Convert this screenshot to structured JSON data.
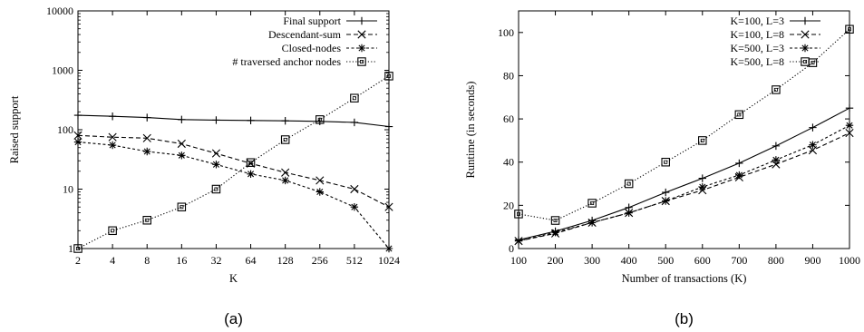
{
  "chart_data": [
    {
      "type": "line",
      "caption": "(a)",
      "xlabel": "K",
      "ylabel": "Raised support",
      "x_scale": "log2",
      "y_scale": "log10",
      "x": [
        2,
        4,
        8,
        16,
        32,
        64,
        128,
        256,
        512,
        1024
      ],
      "x_tick_labels": [
        "2",
        "4",
        "8",
        "16",
        "32",
        "64",
        "128",
        "256",
        "512",
        "1024"
      ],
      "y_ticks": [
        1,
        10,
        100,
        1000,
        10000
      ],
      "y_tick_labels": [
        "1",
        "10",
        "100",
        "1000",
        "10000"
      ],
      "ylim": [
        1,
        10000
      ],
      "grid": false,
      "legend_position": "top-right",
      "series": [
        {
          "name": "Final support",
          "marker": "plus",
          "dash": "solid",
          "values": [
            175,
            168,
            160,
            148,
            145,
            143,
            141,
            138,
            133,
            113
          ]
        },
        {
          "name": "Descendant-sum",
          "marker": "x",
          "dash": "dashed",
          "values": [
            80,
            75,
            72,
            58,
            40,
            27,
            19,
            14,
            10,
            5
          ]
        },
        {
          "name": "Closed-nodes",
          "marker": "asterisk",
          "dash": "short-dashed",
          "values": [
            62,
            55,
            43,
            37,
            26,
            18,
            14,
            9,
            5,
            1
          ]
        },
        {
          "name": "# traversed anchor nodes",
          "marker": "square",
          "dash": "dotted",
          "values": [
            1,
            2,
            3,
            5,
            10,
            28,
            68,
            148,
            340,
            800
          ]
        }
      ]
    },
    {
      "type": "line",
      "caption": "(b)",
      "xlabel": "Number of transactions (K)",
      "ylabel": "Runtime (in seconds)",
      "x": [
        100,
        200,
        300,
        400,
        500,
        600,
        700,
        800,
        900,
        1000
      ],
      "x_tick_labels": [
        "100",
        "200",
        "300",
        "400",
        "500",
        "600",
        "700",
        "800",
        "900",
        "1000"
      ],
      "y_ticks": [
        0,
        20,
        40,
        60,
        80,
        100
      ],
      "y_tick_labels": [
        "0",
        "20",
        "40",
        "60",
        "80",
        "100"
      ],
      "xlim": [
        100,
        1000
      ],
      "ylim": [
        0,
        110
      ],
      "grid": false,
      "legend_position": "top-right",
      "series": [
        {
          "name": "K=100, L=3",
          "marker": "plus",
          "dash": "solid",
          "values": [
            4,
            8,
            13,
            19,
            26,
            32.5,
            39.5,
            47.5,
            56,
            65
          ]
        },
        {
          "name": "K=100, L=8",
          "marker": "x",
          "dash": "dashed",
          "values": [
            3.5,
            7,
            12,
            16.5,
            22,
            27,
            33,
            39,
            45.5,
            53.5
          ]
        },
        {
          "name": "K=500, L=3",
          "marker": "asterisk",
          "dash": "short-dashed",
          "values": [
            3.5,
            7.5,
            12,
            16.5,
            22,
            28.5,
            34,
            41,
            48,
            57
          ]
        },
        {
          "name": "K=500, L=8",
          "marker": "square",
          "dash": "dotted",
          "values": [
            16,
            13,
            21,
            30,
            40,
            50,
            62,
            73.5,
            86,
            101.5
          ]
        }
      ]
    }
  ]
}
